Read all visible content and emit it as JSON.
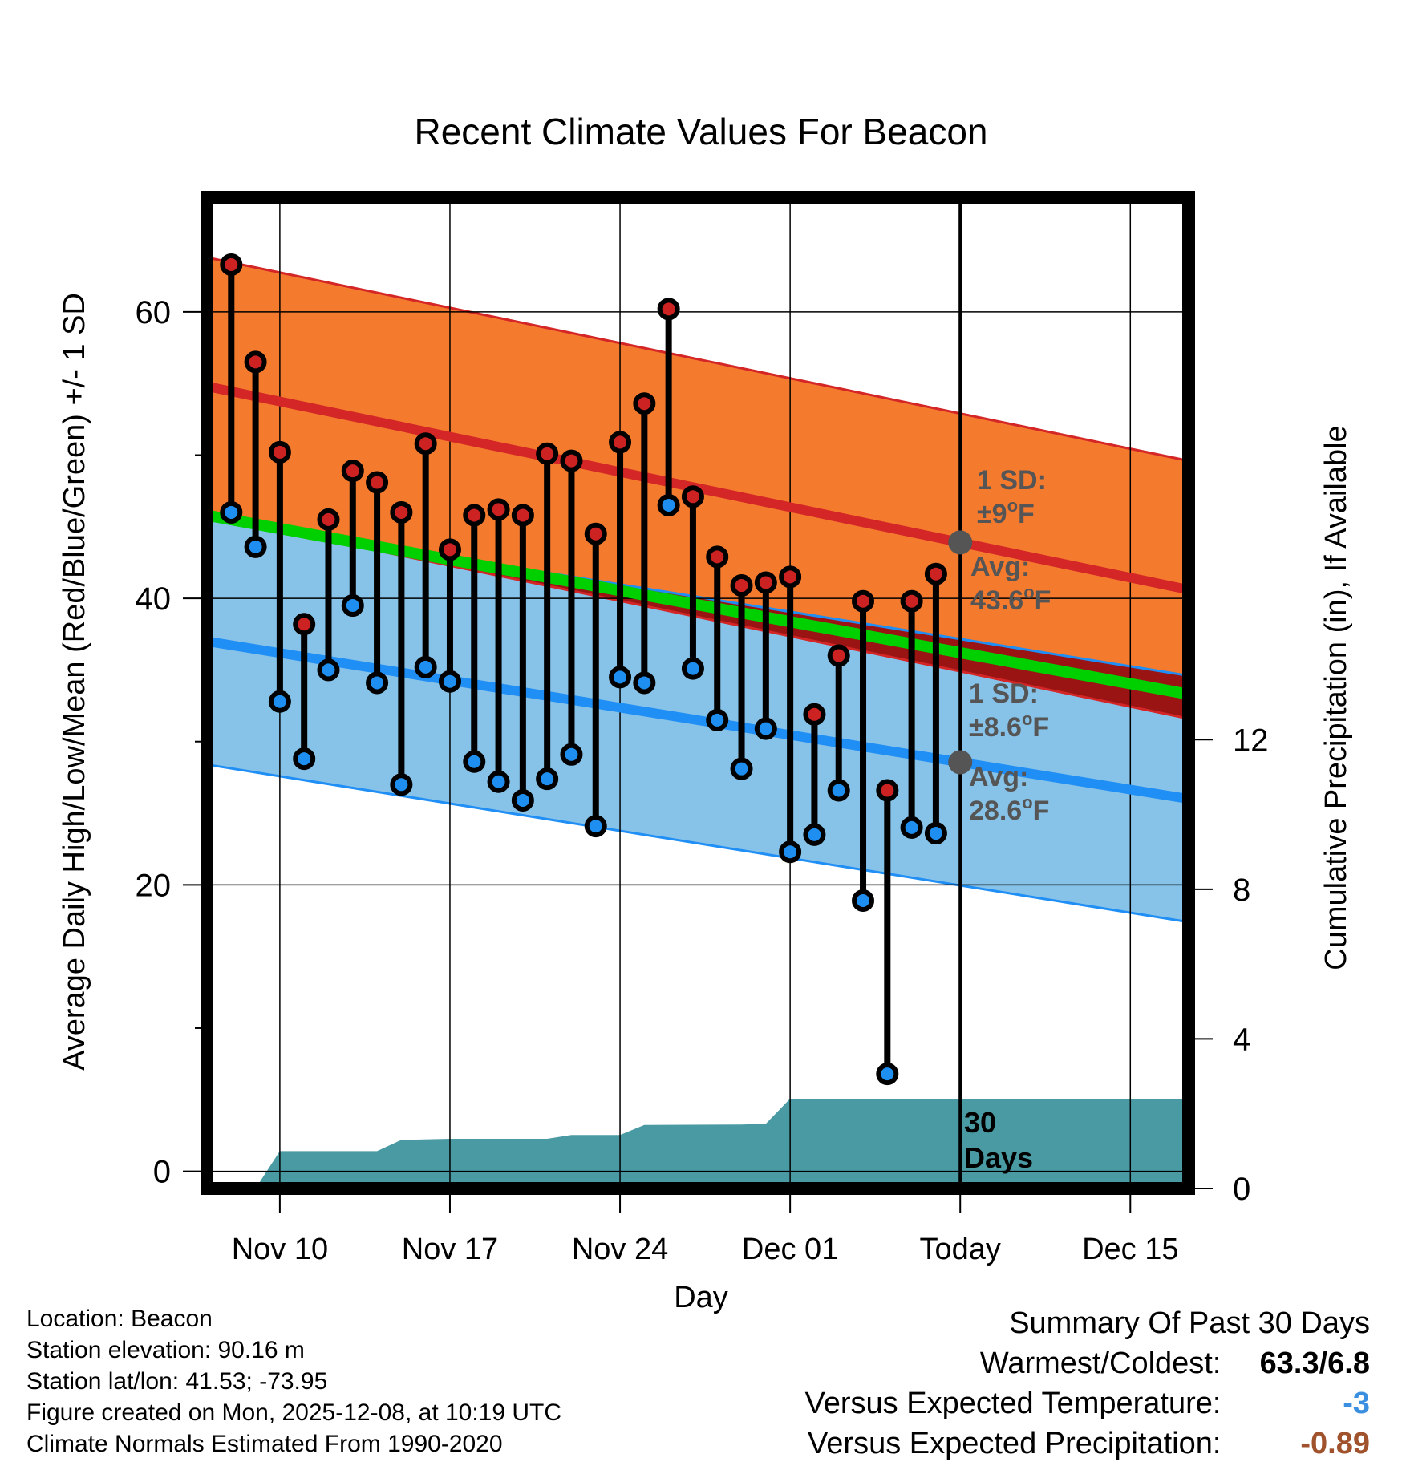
{
  "chart_data": {
    "type": "line",
    "title": "Recent Climate Values For Beacon",
    "xlabel": "Day",
    "ylabel_left": "Average Daily High/Low/Mean (Red/Blue/Green) +/- 1 SD",
    "ylabel_right": "Cumulative Precipitation (in), If Available",
    "x_ticks": [
      {
        "label": "Nov 10",
        "day": 3
      },
      {
        "label": "Nov 17",
        "day": 10
      },
      {
        "label": "Nov 24",
        "day": 17
      },
      {
        "label": "Dec 01",
        "day": 24
      },
      {
        "label": "Today",
        "day": 31
      },
      {
        "label": "Dec 15",
        "day": 38
      }
    ],
    "xlim": [
      0,
      40.4
    ],
    "ylim_left": [
      -1.2,
      68
    ],
    "ylim_right": [
      0,
      26.5
    ],
    "y_ticks_left": [
      0,
      20,
      40,
      60
    ],
    "y_minor_ticks_left": [
      10,
      30,
      50
    ],
    "y_ticks_right": [
      0,
      4,
      8,
      12
    ],
    "today_day": 31,
    "days": [
      1,
      2,
      3,
      4,
      5,
      6,
      7,
      8,
      9,
      10,
      11,
      12,
      13,
      14,
      15,
      16,
      17,
      18,
      19,
      20,
      21,
      22,
      23,
      24,
      25,
      26,
      27,
      28,
      29,
      30
    ],
    "highs": [
      63.3,
      56.5,
      50.2,
      38.2,
      45.5,
      48.9,
      48.1,
      46.0,
      50.8,
      43.4,
      45.8,
      46.2,
      45.8,
      50.1,
      49.6,
      44.5,
      50.9,
      53.6,
      60.2,
      47.1,
      42.9,
      40.9,
      41.1,
      41.5,
      31.9,
      36.0,
      39.8,
      26.6,
      39.8,
      41.7
    ],
    "lows": [
      46.0,
      43.6,
      32.8,
      28.8,
      35.0,
      39.5,
      34.1,
      27.0,
      35.2,
      34.2,
      28.6,
      27.2,
      25.9,
      27.4,
      29.1,
      24.1,
      34.5,
      34.1,
      46.5,
      35.1,
      31.5,
      28.1,
      30.9,
      22.3,
      23.5,
      26.6,
      18.9,
      6.8,
      24.0,
      23.6
    ],
    "normal_high": {
      "start": 54.8,
      "end": 40.6
    },
    "normal_low": {
      "start": 37.0,
      "end": 26.0
    },
    "normal_mean": {
      "start": 45.8,
      "end": 33.3
    },
    "high_sd": 9,
    "low_sd": 8.6,
    "precip_days": [
      0,
      2,
      3,
      7,
      8,
      10,
      12,
      14,
      15,
      16,
      17,
      18,
      22,
      23,
      24,
      25,
      40.4
    ],
    "precip_cum": [
      0,
      0,
      1.0,
      1.0,
      1.3,
      1.33,
      1.33,
      1.33,
      1.43,
      1.43,
      1.43,
      1.7,
      1.71,
      1.73,
      2.4,
      2.4,
      2.4
    ],
    "annotations": {
      "high_sd": "1 SD: ±9°F",
      "high_avg": "Avg: 43.6°F",
      "low_sd": "1 SD: ±8.6°F",
      "low_avg": "Avg: 28.6°F",
      "precip_days": "30 Days"
    }
  },
  "annot": {
    "high_sd_line1": "1 SD:",
    "high_sd_line2": "±9",
    "high_avg_line1": "Avg:",
    "high_avg_line2": "43.6",
    "low_sd_line1": "1 SD:",
    "low_sd_line2": "±8.6",
    "low_avg_line1": "Avg:",
    "low_avg_line2": "28.6",
    "deg": "o",
    "unit": "F",
    "days_num": "30",
    "days_word": "Days"
  },
  "info": {
    "location": "Location: Beacon",
    "elevation": "Station elevation: 90.16 m",
    "latlon": "Station lat/lon: 41.53; -73.95",
    "created": "Figure created on Mon, 2025-12-08, at 10:19 UTC",
    "normals": "Climate Normals Estimated From 1990-2020"
  },
  "summary": {
    "title": "Summary Of Past 30 Days",
    "warm_label": "Warmest/Coldest:",
    "warm_value": "63.3/6.8",
    "temp_label": "Versus Expected Temperature:",
    "temp_value": "-3",
    "precip_label": "Versus Expected Precipitation:",
    "precip_value": "-0.89"
  },
  "colors": {
    "high_band": "#f47a2e",
    "high_line": "#d42626",
    "low_band": "#87c2e8",
    "low_line": "#1f8ef5",
    "mean_line": "#00d000",
    "deficit_band": "#9a1414",
    "precip_fill": "#4a9aa4",
    "annotation": "#555555",
    "temp_value": "#3a8fe0",
    "precip_value": "#a0522d"
  }
}
